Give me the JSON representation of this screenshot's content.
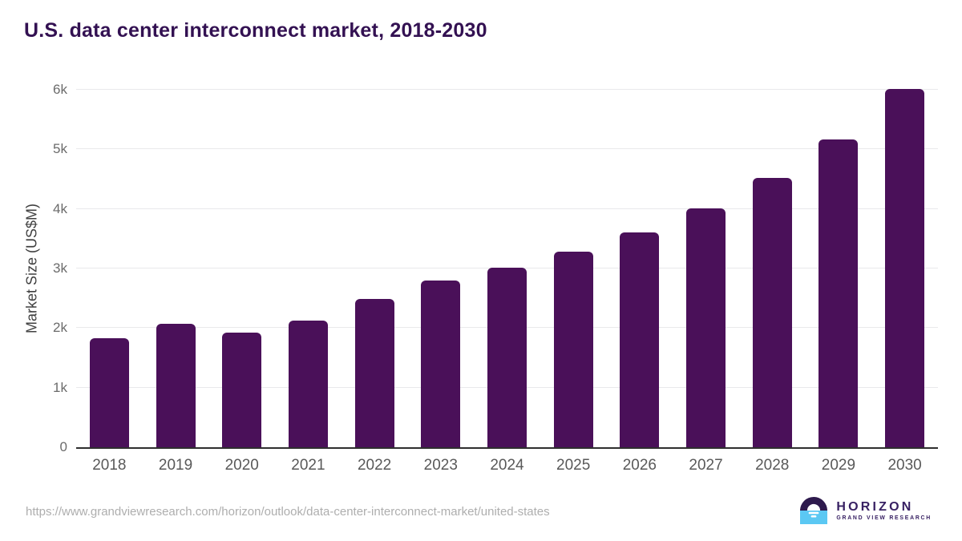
{
  "chart_data": {
    "type": "bar",
    "title": "U.S. data center interconnect market, 2018-2030",
    "xlabel": "",
    "ylabel": "Market Size (US$M)",
    "categories": [
      "2018",
      "2019",
      "2020",
      "2021",
      "2022",
      "2023",
      "2024",
      "2025",
      "2026",
      "2027",
      "2028",
      "2029",
      "2030"
    ],
    "values": [
      1830,
      2070,
      1930,
      2120,
      2490,
      2800,
      3020,
      3280,
      3600,
      4010,
      4520,
      5170,
      6020
    ],
    "ylim": [
      0,
      6000
    ],
    "y_ticks": [
      {
        "value": 0,
        "label": "0"
      },
      {
        "value": 1000,
        "label": "1k"
      },
      {
        "value": 2000,
        "label": "2k"
      },
      {
        "value": 3000,
        "label": "3k"
      },
      {
        "value": 4000,
        "label": "4k"
      },
      {
        "value": 5000,
        "label": "5k"
      },
      {
        "value": 6000,
        "label": "6k"
      }
    ],
    "grid": true,
    "legend": "none",
    "bar_color": "#4a1059"
  },
  "colors": {
    "title": "#331152",
    "axis_line": "#2f2f2f",
    "gridline": "#e9e9eb",
    "tick_text": "#6b6b6b",
    "logo_purple": "#2e1a4d",
    "logo_blue": "#5bc8f3"
  },
  "footer": {
    "source_url": "https://www.grandviewresearch.com/horizon/outlook/data-center-interconnect-market/united-states",
    "logo": {
      "name": "HORIZON",
      "subtitle": "GRAND VIEW RESEARCH"
    }
  }
}
